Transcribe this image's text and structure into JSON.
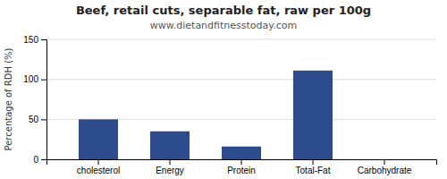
{
  "chart_data": {
    "type": "bar",
    "title": "Beef, retail cuts, separable fat, raw per 100g",
    "subtitle": "www.dietandfitnesstoday.com",
    "ylabel": "Percentage of RDH (%)",
    "categories": [
      "cholesterol",
      "Energy",
      "Protein",
      "Total-Fat",
      "Carbohydrate"
    ],
    "values": [
      50,
      35,
      16,
      111,
      0
    ],
    "color": "#2b4b8c",
    "ylim": [
      0,
      150
    ],
    "yticks": [
      0,
      50,
      100,
      150
    ],
    "grid": true
  }
}
